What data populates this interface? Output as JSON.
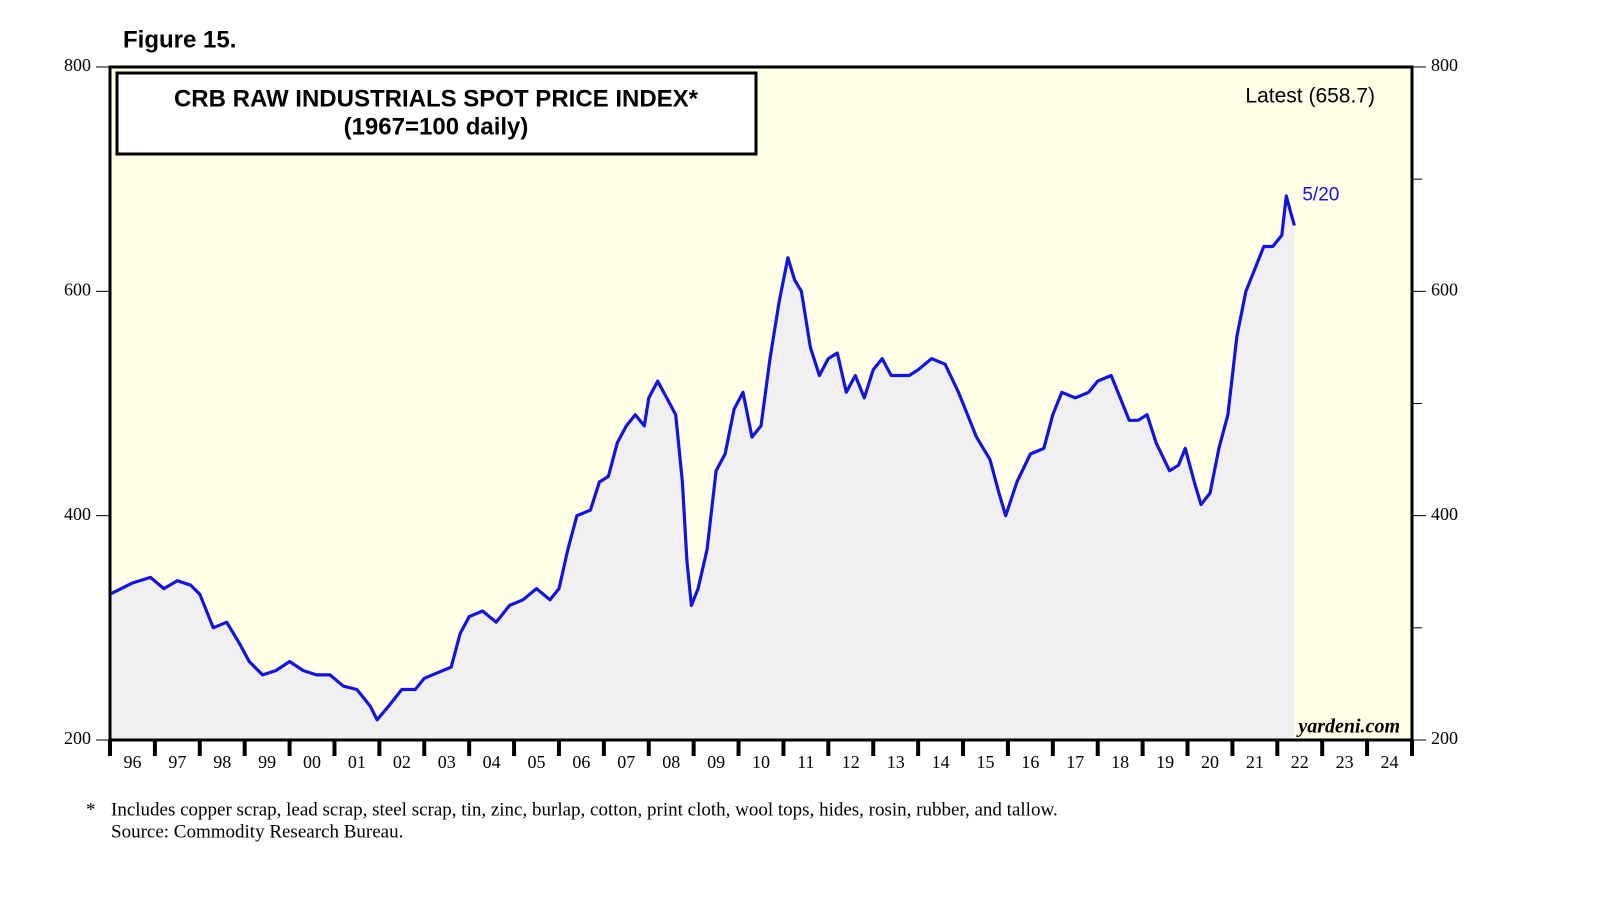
{
  "chart_data": {
    "type": "line",
    "figure_label": "Figure 15.",
    "title": "CRB RAW INDUSTRIALS SPOT PRICE INDEX*",
    "subtitle": "(1967=100 daily)",
    "annotations": {
      "latest": "Latest (658.7)",
      "date": "5/20",
      "source_site": "yardeni.com"
    },
    "footnote_marker": "*",
    "footnotes": [
      "Includes copper scrap, lead scrap, steel scrap, tin, zinc, burlap, cotton, print cloth, wool tops, hides, rosin, rubber, and tallow.",
      "Source: Commodity Research Bureau."
    ],
    "color": "#1414e0",
    "x": [
      1996.0,
      1996.5,
      1996.9,
      1997.2,
      1997.5,
      1997.8,
      1998.0,
      1998.3,
      1998.6,
      1998.9,
      1999.1,
      1999.4,
      1999.7,
      2000.0,
      2000.3,
      2000.6,
      2000.9,
      2001.2,
      2001.5,
      2001.8,
      2001.95,
      2002.2,
      2002.5,
      2002.8,
      2003.0,
      2003.3,
      2003.6,
      2003.8,
      2004.0,
      2004.3,
      2004.6,
      2004.9,
      2005.2,
      2005.5,
      2005.8,
      2006.0,
      2006.2,
      2006.4,
      2006.7,
      2006.9,
      2007.1,
      2007.3,
      2007.5,
      2007.7,
      2007.9,
      2008.0,
      2008.2,
      2008.4,
      2008.6,
      2008.75,
      2008.85,
      2008.95,
      2009.1,
      2009.3,
      2009.5,
      2009.7,
      2009.9,
      2010.1,
      2010.3,
      2010.5,
      2010.7,
      2010.9,
      2011.1,
      2011.25,
      2011.4,
      2011.6,
      2011.8,
      2012.0,
      2012.2,
      2012.4,
      2012.6,
      2012.8,
      2013.0,
      2013.2,
      2013.4,
      2013.6,
      2013.8,
      2014.0,
      2014.3,
      2014.6,
      2014.9,
      2015.1,
      2015.3,
      2015.6,
      2015.8,
      2015.95,
      2016.2,
      2016.5,
      2016.8,
      2017.0,
      2017.2,
      2017.5,
      2017.8,
      2018.0,
      2018.3,
      2018.5,
      2018.7,
      2018.9,
      2019.1,
      2019.3,
      2019.6,
      2019.8,
      2019.95,
      2020.15,
      2020.3,
      2020.5,
      2020.7,
      2020.9,
      2021.1,
      2021.3,
      2021.5,
      2021.7,
      2021.9,
      2022.1,
      2022.2,
      2022.3,
      2022.38
    ],
    "values": [
      330,
      340,
      345,
      335,
      342,
      338,
      330,
      300,
      305,
      285,
      270,
      258,
      262,
      270,
      262,
      258,
      258,
      248,
      245,
      230,
      218,
      230,
      245,
      245,
      255,
      260,
      265,
      295,
      310,
      315,
      305,
      320,
      325,
      335,
      325,
      335,
      370,
      400,
      405,
      430,
      435,
      465,
      480,
      490,
      480,
      505,
      520,
      505,
      490,
      430,
      360,
      320,
      335,
      370,
      440,
      455,
      495,
      510,
      470,
      480,
      540,
      590,
      630,
      610,
      600,
      550,
      525,
      540,
      545,
      510,
      525,
      505,
      530,
      540,
      525,
      525,
      525,
      530,
      540,
      535,
      510,
      490,
      470,
      450,
      420,
      400,
      430,
      455,
      460,
      490,
      510,
      505,
      510,
      520,
      525,
      505,
      485,
      485,
      490,
      465,
      440,
      445,
      460,
      430,
      410,
      420,
      460,
      490,
      560,
      600,
      620,
      640,
      640,
      650,
      685,
      670,
      658.7
    ],
    "xlim": [
      1996,
      2025
    ],
    "xticks": [
      {
        "value": 1996,
        "label": "96"
      },
      {
        "value": 1997,
        "label": "97"
      },
      {
        "value": 1998,
        "label": "98"
      },
      {
        "value": 1999,
        "label": "99"
      },
      {
        "value": 2000,
        "label": "00"
      },
      {
        "value": 2001,
        "label": "01"
      },
      {
        "value": 2002,
        "label": "02"
      },
      {
        "value": 2003,
        "label": "03"
      },
      {
        "value": 2004,
        "label": "04"
      },
      {
        "value": 2005,
        "label": "05"
      },
      {
        "value": 2006,
        "label": "06"
      },
      {
        "value": 2007,
        "label": "07"
      },
      {
        "value": 2008,
        "label": "08"
      },
      {
        "value": 2009,
        "label": "09"
      },
      {
        "value": 2010,
        "label": "10"
      },
      {
        "value": 2011,
        "label": "11"
      },
      {
        "value": 2012,
        "label": "12"
      },
      {
        "value": 2013,
        "label": "13"
      },
      {
        "value": 2014,
        "label": "14"
      },
      {
        "value": 2015,
        "label": "15"
      },
      {
        "value": 2016,
        "label": "16"
      },
      {
        "value": 2017,
        "label": "17"
      },
      {
        "value": 2018,
        "label": "18"
      },
      {
        "value": 2019,
        "label": "19"
      },
      {
        "value": 2020,
        "label": "20"
      },
      {
        "value": 2021,
        "label": "21"
      },
      {
        "value": 2022,
        "label": "22"
      },
      {
        "value": 2023,
        "label": "23"
      },
      {
        "value": 2024,
        "label": "24"
      }
    ],
    "ylim": [
      200,
      800
    ],
    "yticks": [
      200,
      400,
      600,
      800
    ],
    "y_minor_ticks": [
      300,
      500,
      700
    ]
  }
}
